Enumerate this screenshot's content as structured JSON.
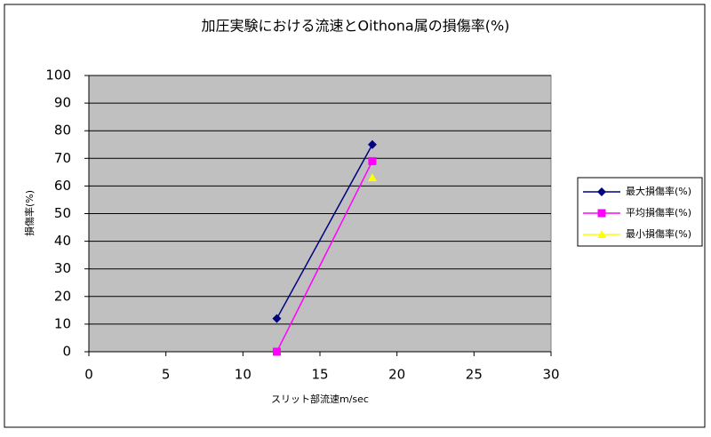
{
  "chart_data": {
    "type": "line",
    "title": "加圧実験における流速とOithona属の損傷率(%)",
    "x_label": "スリット部流速m/sec",
    "y_label": "損傷率(%)",
    "x": [
      12.2,
      18.4
    ],
    "series": [
      {
        "name": "最大損傷率(%)",
        "color": "#000080",
        "marker": "diamond",
        "values": [
          12,
          75
        ]
      },
      {
        "name": "平均損傷率(%)",
        "color": "#ff00ff",
        "marker": "square",
        "values": [
          0,
          69
        ]
      },
      {
        "name": "最小損傷率(%)",
        "color": "#ffff00",
        "marker": "triangle",
        "values": [
          null,
          63
        ]
      }
    ],
    "xlim": [
      0,
      30
    ],
    "xticks": [
      0,
      5,
      10,
      15,
      20,
      25,
      30
    ],
    "ylim": [
      0,
      100
    ],
    "yticks": [
      0,
      10,
      20,
      30,
      40,
      50,
      60,
      70,
      80,
      90,
      100
    ],
    "grid": true,
    "legend": "right"
  }
}
